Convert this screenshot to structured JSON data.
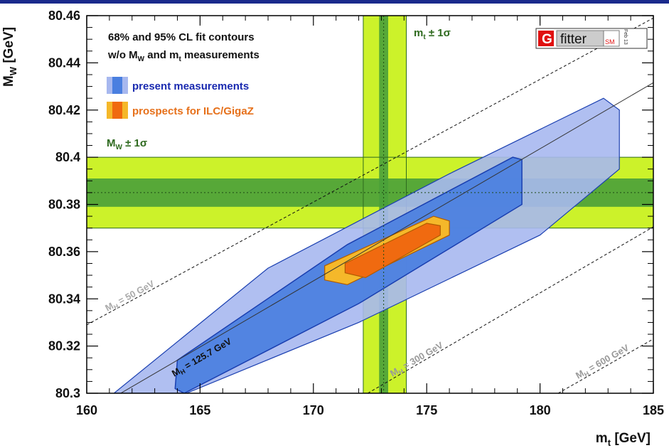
{
  "colors": {
    "topbar": "#1a2a8c",
    "blue_outer": "#a7b8ef",
    "blue_inner": "#4a7fe0",
    "blue_stroke": "#1a3fb0",
    "orange_outer": "#f5b82a",
    "orange_inner": "#f06a10",
    "orange_stroke": "#b05a00",
    "band_outer": "#ccf22a",
    "band_inner": "#4aa03a",
    "band_line": "#2e6a1e",
    "text_dark": "#111111",
    "legend_blue_text": "#1a2ab0",
    "legend_orange_text": "#e6701a",
    "band_label": "#2e6a1e",
    "gfitter_red": "#e01010"
  },
  "chart_data": {
    "type": "contour",
    "xlabel_main": "m",
    "xlabel_sub": "t",
    "xlabel_unit": " [GeV]",
    "ylabel_main": "M",
    "ylabel_sub": "W",
    "ylabel_unit": " [GeV]",
    "xlim": [
      160,
      185
    ],
    "ylim": [
      80.3,
      80.46
    ],
    "xticks": [
      160,
      165,
      170,
      175,
      180,
      185
    ],
    "yticks": [
      80.3,
      80.32,
      80.34,
      80.36,
      80.38,
      80.4,
      80.42,
      80.44,
      80.46
    ],
    "xtick_labels": [
      "160",
      "165",
      "170",
      "175",
      "180",
      "185"
    ],
    "ytick_labels": [
      "80.3",
      "80.32",
      "80.34",
      "80.36",
      "80.38",
      "80.4",
      "80.42",
      "80.44",
      "80.46"
    ],
    "legend": {
      "line1": "68% and 95% CL fit contours",
      "line2_pre": "w/o M",
      "line2_sub1": "W",
      "line2_mid": " and m",
      "line2_sub2": "t",
      "line2_post": " measurements",
      "present": "present measurements",
      "prospects": "prospects for ILC/GigaZ"
    },
    "mw_band": {
      "label_main": "M",
      "label_sub": "W",
      "label_rest": " ± 1σ",
      "center": 80.385,
      "outer": [
        80.37,
        80.4
      ],
      "inner": [
        80.379,
        80.391
      ]
    },
    "mt_band": {
      "label_main": "m",
      "label_sub": "t",
      "label_rest": " ± 1σ",
      "center": 173.1,
      "outer": [
        172.2,
        174.1
      ],
      "inner": [
        172.9,
        173.3
      ]
    },
    "mh_lines": [
      {
        "label": "M",
        "label_sub": "H",
        "label_rest": " = 50 GeV",
        "points": [
          [
            160,
            80.329
          ],
          [
            185,
            80.459
          ]
        ]
      },
      {
        "label": "M",
        "label_sub": "H",
        "label_rest": " = 125.7 GeV",
        "points": [
          [
            160,
            80.2916
          ],
          [
            185,
            80.4316
          ]
        ]
      },
      {
        "label": "M",
        "label_sub": "H",
        "label_rest": " = 300 GeV",
        "points": [
          [
            172.4,
            80.3
          ],
          [
            185,
            80.3705
          ]
        ]
      },
      {
        "label": "M",
        "label_sub": "H",
        "label_rest": " = 600 GeV",
        "points": [
          [
            180.8,
            80.3
          ],
          [
            185,
            80.323
          ]
        ]
      }
    ],
    "contours": {
      "present_95": [
        [
          161.2,
          80.3
        ],
        [
          164.4,
          80.3
        ],
        [
          172,
          80.33
        ],
        [
          180,
          80.367
        ],
        [
          183.5,
          80.395
        ],
        [
          183.5,
          80.42
        ],
        [
          182.8,
          80.425
        ],
        [
          176,
          80.393
        ],
        [
          168,
          80.353
        ]
      ],
      "present_68": [
        [
          163.9,
          80.302
        ],
        [
          164.3,
          80.3
        ],
        [
          172,
          80.338
        ],
        [
          179.2,
          80.38
        ],
        [
          179.2,
          80.399
        ],
        [
          178.8,
          80.4
        ],
        [
          171.5,
          80.363
        ],
        [
          164,
          80.314
        ]
      ],
      "ilc_95": [
        [
          170.5,
          80.348
        ],
        [
          171.5,
          80.346
        ],
        [
          176,
          80.367
        ],
        [
          176,
          80.373
        ],
        [
          175.3,
          80.375
        ],
        [
          170.5,
          80.354
        ]
      ],
      "ilc_68": [
        [
          171.4,
          80.351
        ],
        [
          172.3,
          80.349
        ],
        [
          175.6,
          80.367
        ],
        [
          175.6,
          80.371
        ],
        [
          175,
          80.372
        ],
        [
          171.4,
          80.355
        ]
      ]
    }
  },
  "gfitter": {
    "letter": "G",
    "word": "fitter",
    "sub": "SM",
    "date": "Feb 13"
  }
}
